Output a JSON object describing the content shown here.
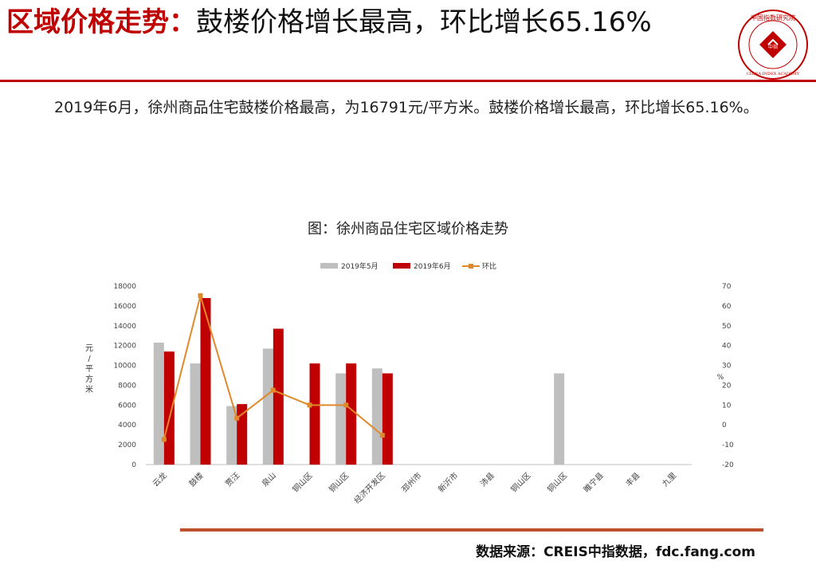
{
  "header": {
    "title_red": "区域价格走势：",
    "title_black": "鼓楼价格增长最高，环比增长65.16%",
    "logo_text_top": "中国指数研究院",
    "logo_text_center": "中指",
    "logo_text_bottom": "CHINA INDEX ACADEMY"
  },
  "body": {
    "paragraph": "2019年6月，徐州商品住宅鼓楼价格最高，为16791元/平方米。鼓楼价格增长最高，环比增长65.16%。"
  },
  "footer": {
    "source": "数据来源：CREIS中指数据，fdc.fang.com"
  },
  "colors": {
    "accent_red": "#c00000",
    "bar_may": "#bfbfbf",
    "bar_jun": "#c00000",
    "line_mom": "#e0892a",
    "bottom_rule": "#c0502b"
  },
  "chart_data": {
    "type": "bar",
    "title": "图：徐州商品住宅区域价格走势",
    "categories": [
      "云龙",
      "鼓楼",
      "贾汪",
      "泉山",
      "铜山区",
      "铜山区",
      "经济开发区",
      "邳州市",
      "新沂市",
      "沛县",
      "铜山区",
      "铜山区",
      "睢宁县",
      "丰县",
      "九里"
    ],
    "series": [
      {
        "name": "2019年5月",
        "kind": "bar",
        "axis": "left",
        "values": [
          12300,
          10200,
          5900,
          11700,
          null,
          9200,
          9700,
          null,
          null,
          null,
          null,
          9200,
          null,
          null,
          null
        ]
      },
      {
        "name": "2019年6月",
        "kind": "bar",
        "axis": "left",
        "values": [
          11400,
          16791,
          6100,
          13700,
          10200,
          10200,
          9200,
          null,
          null,
          null,
          null,
          null,
          null,
          null,
          null
        ]
      },
      {
        "name": "环比",
        "kind": "line",
        "axis": "right",
        "values": [
          -7.3,
          65.16,
          3.4,
          17.5,
          10.0,
          10.0,
          -5.2,
          null,
          null,
          null,
          null,
          null,
          null,
          null,
          null
        ]
      }
    ],
    "ylabel": "元/平方米",
    "y2label": "%",
    "ylim": [
      0,
      18000
    ],
    "yticks": [
      0,
      2000,
      4000,
      6000,
      8000,
      10000,
      12000,
      14000,
      16000,
      18000
    ],
    "y2lim": [
      -20,
      70
    ],
    "y2ticks": [
      -20,
      -10,
      0,
      10,
      20,
      30,
      40,
      50,
      60,
      70
    ],
    "legend_position": "top-center",
    "grid": false
  }
}
